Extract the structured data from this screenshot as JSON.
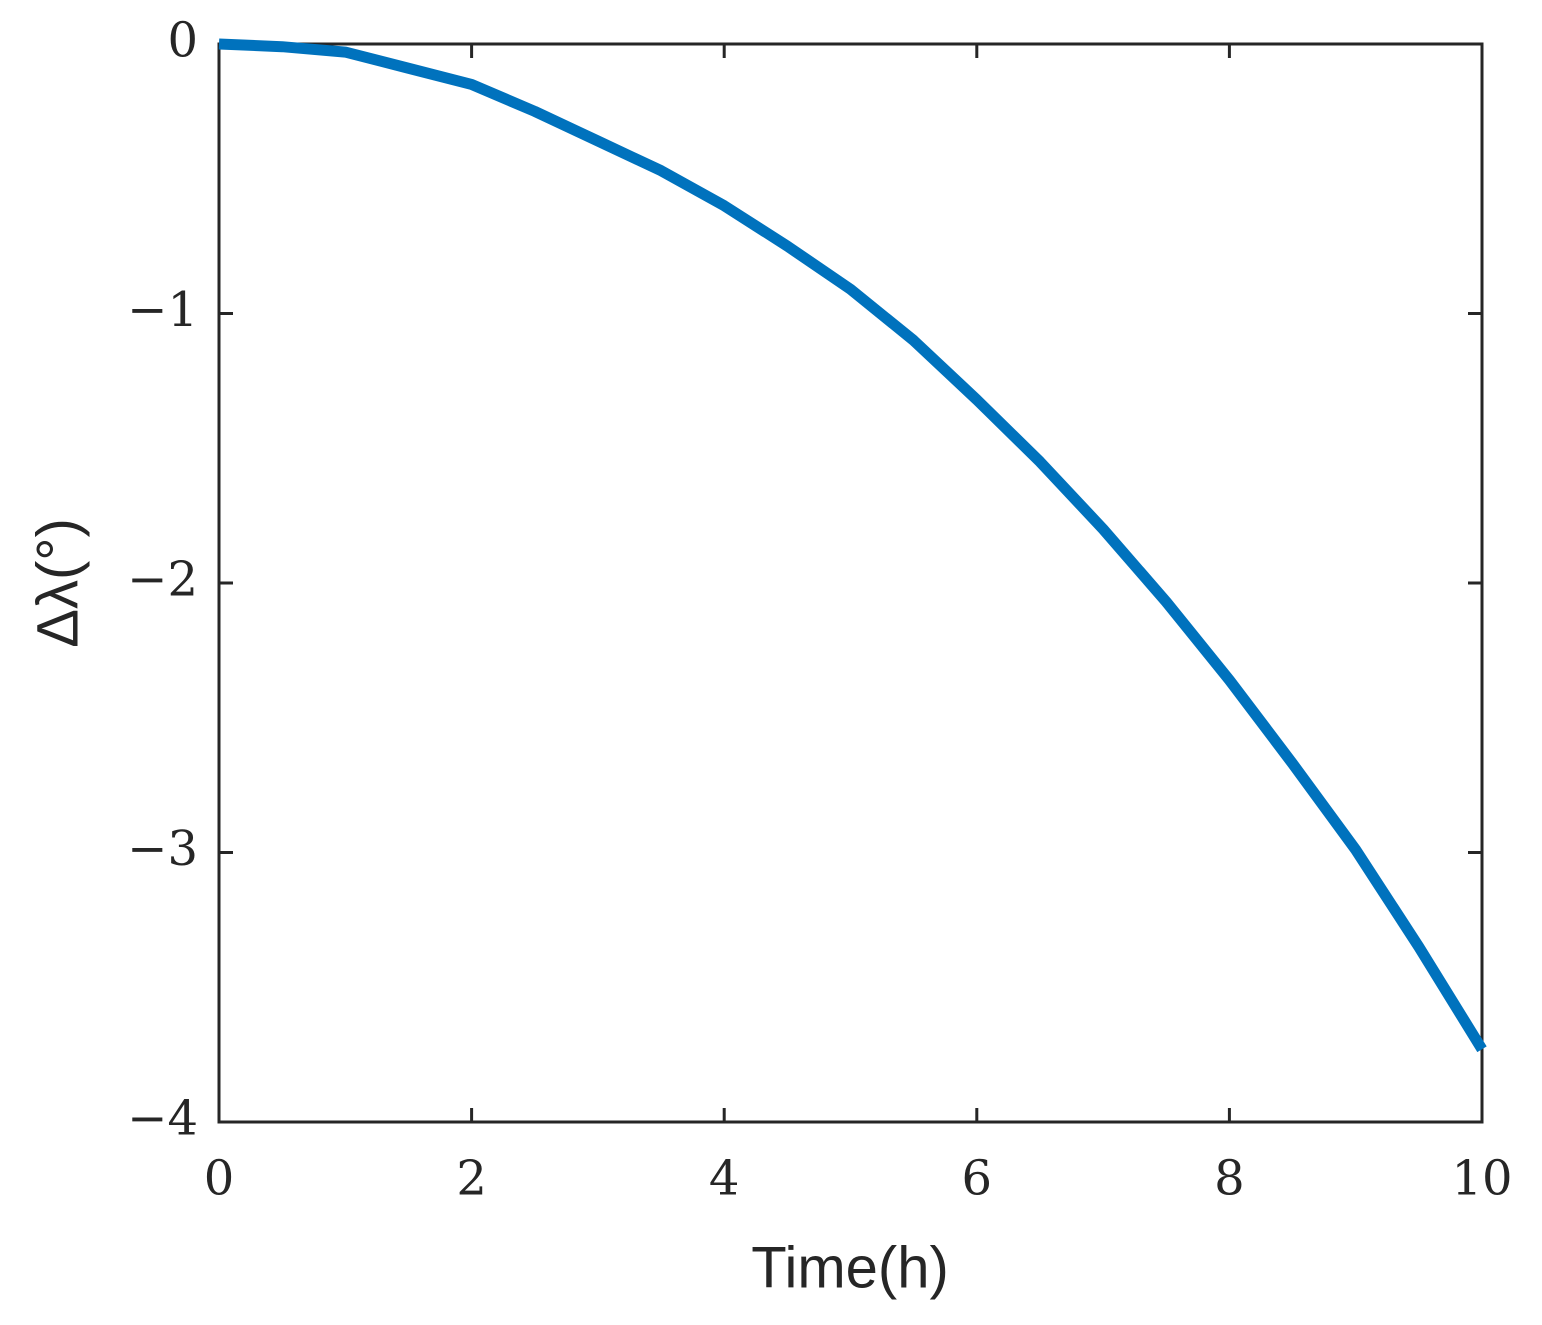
{
  "chart_data": {
    "type": "line",
    "xlabel": "Time(h)",
    "ylabel": "Δλ(°)",
    "x": [
      0,
      0.5,
      1,
      1.5,
      2,
      2.5,
      3,
      3.5,
      4,
      4.5,
      5,
      5.5,
      6,
      6.5,
      7,
      7.5,
      8,
      8.5,
      9,
      9.5,
      10
    ],
    "series": [
      {
        "color": "#0072bd",
        "values": [
          0,
          -0.01,
          -0.03,
          -0.09,
          -0.15,
          -0.25,
          -0.36,
          -0.47,
          -0.6,
          -0.75,
          -0.91,
          -1.1,
          -1.32,
          -1.55,
          -1.8,
          -2.07,
          -2.36,
          -2.67,
          -2.99,
          -3.35,
          -3.73
        ]
      }
    ],
    "xlim": [
      0,
      10
    ],
    "xticks": [
      0,
      2,
      4,
      6,
      8,
      10
    ],
    "ylim": [
      -4,
      0
    ],
    "yticks": [
      {
        "value": -4,
        "label": "−4"
      },
      {
        "value": -3,
        "label": "−3"
      },
      {
        "value": -2,
        "label": "−2"
      },
      {
        "value": -1,
        "label": "−1"
      },
      0
    ],
    "grid": false
  }
}
